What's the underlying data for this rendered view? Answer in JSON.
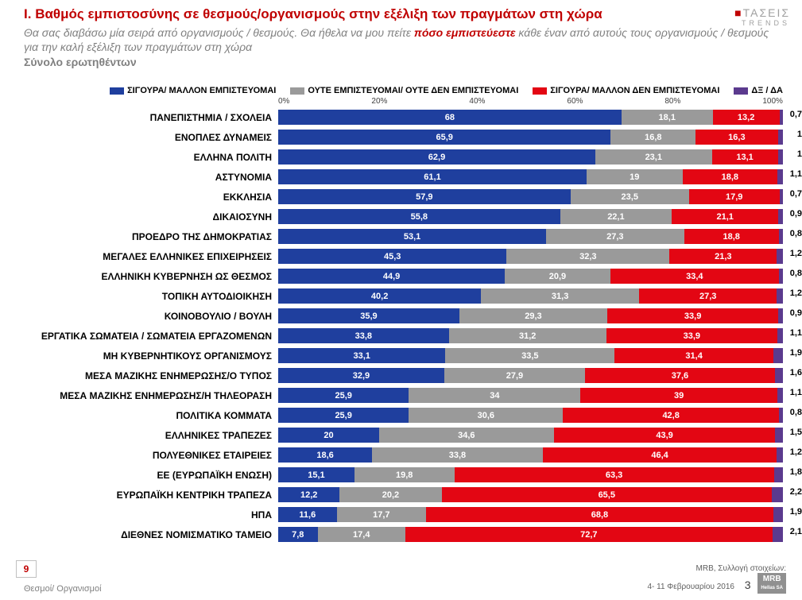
{
  "header": {
    "title_prefix": "I.",
    "title": "Βαθμός εμπιστοσύνης σε θεσμούς/οργανισμούς στην εξέλιξη των πραγμάτων στη χώρα",
    "subtitle_a": "Θα σας διαβάσω μία σειρά από οργανισμούς / θεσμούς. Θα ήθελα να μου πείτε ",
    "subtitle_emph": "πόσο εμπιστεύεστε",
    "subtitle_b": " κάθε έναν από αυτούς τους οργανισμούς / θεσμούς για την καλή εξέλιξη των πραγμάτων στη χώρα",
    "sample": "Σύνολο ερωτηθέντων",
    "brand_tasei": "ΤΑΣΕΙΣ",
    "brand_trends": "TRENDS"
  },
  "legend": {
    "items": [
      {
        "label": "ΣΙΓΟΥΡΑ/ ΜΑΛΛΟΝ ΕΜΠΙΣΤΕΥΟΜΑΙ",
        "color": "#1f3f9e"
      },
      {
        "label": "ΟΥΤΕ ΕΜΠΙΣΤΕΥΟΜΑΙ/ ΟΥΤΕ ΔΕΝ ΕΜΠΙΣΤΕΥΟΜΑΙ",
        "color": "#9a9a9a"
      },
      {
        "label": "ΣΙΓΟΥΡΑ/ ΜΑΛΛΟΝ ΔΕΝ ΕΜΠΙΣΤΕΥΟΜΑΙ",
        "color": "#e30613"
      },
      {
        "label": "ΔΞ / ΔΑ",
        "color": "#5b3a8e"
      }
    ]
  },
  "axis": {
    "ticks": [
      "0%",
      "20%",
      "40%",
      "60%",
      "80%",
      "100%"
    ]
  },
  "chart": {
    "type": "stacked-horizontal-bar",
    "colors": {
      "trust": "#1f3f9e",
      "neutral": "#9a9a9a",
      "distrust": "#e30613",
      "dk": "#5b3a8e"
    },
    "rows": [
      {
        "label": "ΠΑΝΕΠΙΣΤΗΜΙΑ / ΣΧΟΛΕΙΑ",
        "v": [
          68,
          18.1,
          13.2,
          0.7
        ]
      },
      {
        "label": "ΕΝΟΠΛΕΣ ΔΥΝΑΜΕΙΣ",
        "v": [
          65.9,
          16.8,
          16.3,
          1
        ]
      },
      {
        "label": "ΕΛΛΗΝΑ ΠΟΛΙΤΗ",
        "v": [
          62.9,
          23.1,
          13.1,
          1
        ]
      },
      {
        "label": "ΑΣΤΥΝΟΜΙΑ",
        "v": [
          61.1,
          19,
          18.8,
          1.1
        ]
      },
      {
        "label": "ΕΚΚΛΗΣΙΑ",
        "v": [
          57.9,
          23.5,
          17.9,
          0.7
        ]
      },
      {
        "label": "ΔΙΚΑΙΟΣΥΝΗ",
        "v": [
          55.8,
          22.1,
          21.1,
          0.9
        ]
      },
      {
        "label": "ΠΡΟΕΔΡΟ ΤΗΣ ΔΗΜΟΚΡΑΤΙΑΣ",
        "v": [
          53.1,
          27.3,
          18.8,
          0.8
        ]
      },
      {
        "label": "ΜΕΓΑΛΕΣ ΕΛΛΗΝΙΚΕΣ ΕΠΙΧΕΙΡΗΣΕΙΣ",
        "v": [
          45.3,
          32.3,
          21.3,
          1.2
        ]
      },
      {
        "label": "ΕΛΛΗΝΙΚΗ ΚΥΒΕΡΝΗΣΗ ΩΣ ΘΕΣΜΟΣ",
        "v": [
          44.9,
          20.9,
          33.4,
          0.8
        ]
      },
      {
        "label": "ΤΟΠΙΚΗ ΑΥΤΟΔΙΟΙΚΗΣΗ",
        "v": [
          40.2,
          31.3,
          27.3,
          1.2
        ]
      },
      {
        "label": "ΚΟΙΝΟΒΟΥΛΙΟ / ΒΟΥΛΗ",
        "v": [
          35.9,
          29.3,
          33.9,
          0.9
        ]
      },
      {
        "label": "ΕΡΓΑΤΙΚΑ ΣΩΜΑΤΕΙΑ / ΣΩΜΑΤΕΙΑ ΕΡΓΑΖΟΜΕΝΩΝ",
        "v": [
          33.8,
          31.2,
          33.9,
          1.1
        ]
      },
      {
        "label": "ΜΗ ΚΥΒΕΡΝΗΤΙΚΟΥΣ ΟΡΓΑΝΙΣΜΟΥΣ",
        "v": [
          33.1,
          33.5,
          31.4,
          1.9
        ]
      },
      {
        "label": "ΜΕΣΑ ΜΑΖΙΚΗΣ ΕΝΗΜΕΡΩΣΗΣ/Ο ΤΥΠΟΣ",
        "v": [
          32.9,
          27.9,
          37.6,
          1.6
        ]
      },
      {
        "label": "ΜΕΣΑ ΜΑΖΙΚΗΣ ΕΝΗΜΕΡΩΣΗΣ/Η ΤΗΛΕΟΡΑΣΗ",
        "v": [
          25.9,
          34,
          39,
          1.1
        ]
      },
      {
        "label": "ΠΟΛΙΤΙΚΑ ΚΟΜΜΑΤΑ",
        "v": [
          25.9,
          30.6,
          42.8,
          0.8
        ]
      },
      {
        "label": "ΕΛΛΗΝΙΚΕΣ ΤΡΑΠΕΖΕΣ",
        "v": [
          20,
          34.6,
          43.9,
          1.5
        ]
      },
      {
        "label": "ΠΟΛΥΕΘΝΙΚΕΣ ΕΤΑΙΡΕΙΕΣ",
        "v": [
          18.6,
          33.8,
          46.4,
          1.2
        ]
      },
      {
        "label": "ΕΕ (ΕΥΡΩΠΑΪΚΗ ΕΝΩΣΗ)",
        "v": [
          15.1,
          19.8,
          63.3,
          1.8
        ]
      },
      {
        "label": "ΕΥΡΩΠΑΪΚΗ ΚΕΝΤΡΙΚΗ ΤΡΑΠΕΖΑ",
        "v": [
          12.2,
          20.2,
          65.5,
          2.2
        ]
      },
      {
        "label": "ΗΠΑ",
        "v": [
          11.6,
          17.7,
          68.8,
          1.9
        ]
      },
      {
        "label": "ΔΙΕΘΝΕΣ ΝΟΜΙΣΜΑΤΙΚΟ ΤΑΜΕΙΟ",
        "v": [
          7.8,
          17.4,
          72.7,
          2.1
        ]
      }
    ]
  },
  "footer": {
    "page_box": "9",
    "left": "Θεσμοί/ Οργανισμοί",
    "source_a": "MRB, Συλλογή στοιχείων:",
    "source_b": "4- 11 Φεβρουαρίου 2016",
    "page_num": "3",
    "mrb": "MRB",
    "mrb_sub": "Hellas SA"
  }
}
